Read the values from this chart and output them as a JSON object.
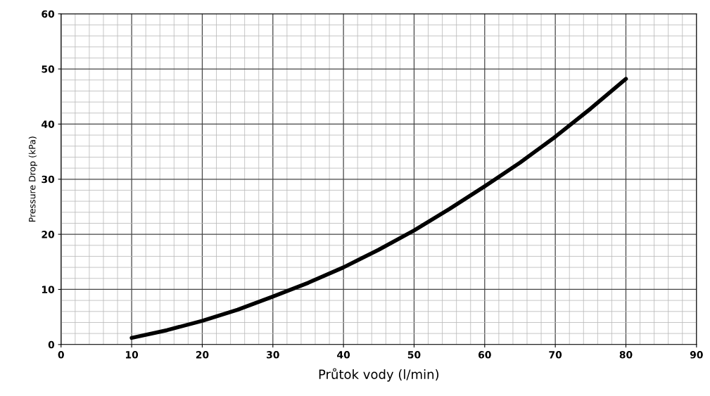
{
  "chart_data": {
    "type": "line",
    "xlabel": "Průtok vody (l/min)",
    "ylabel": "Pressure Drop (kPa)",
    "x": [
      10,
      15,
      20,
      25,
      30,
      35,
      40,
      45,
      50,
      55,
      60,
      65,
      70,
      75,
      80
    ],
    "series": [
      {
        "color": "#000000",
        "values": [
          1.2,
          2.6,
          4.3,
          6.3,
          8.7,
          11.2,
          14.0,
          17.2,
          20.7,
          24.6,
          28.7,
          33.0,
          37.7,
          42.8,
          48.2
        ]
      }
    ],
    "xlim": [
      0,
      90
    ],
    "xticks": [
      0,
      10,
      20,
      30,
      40,
      50,
      60,
      70,
      80,
      90
    ],
    "ylim": [
      0,
      60
    ],
    "yticks": [
      0,
      10,
      20,
      30,
      40,
      50,
      60
    ],
    "grid": true,
    "marker": "none",
    "line_style": "solid",
    "legend": false
  }
}
